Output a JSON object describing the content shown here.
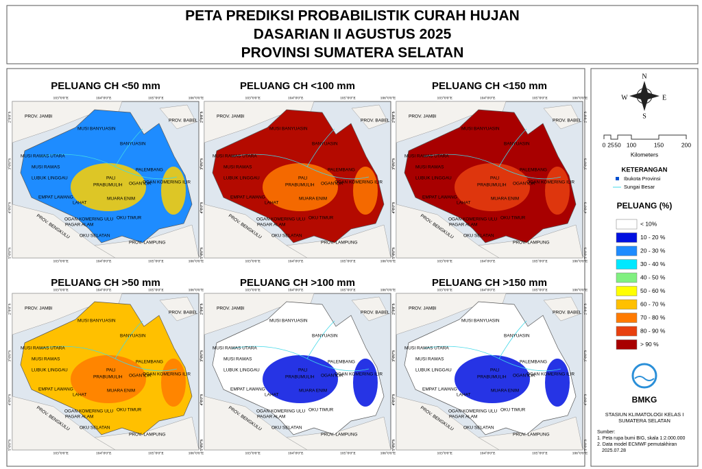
{
  "header": {
    "title_lines": [
      "PETA PREDIKSI PROBABILISTIK CURAH HUJAN",
      "DASARIAN II AGUSTUS 2025",
      "PROVINSI SUMATERA SELATAN"
    ]
  },
  "grid_labels": {
    "lon": [
      "103°0'0\"E",
      "104°0'0\"E",
      "105°0'0\"E",
      "106°0'0\"E"
    ],
    "lat": [
      "2°0'0\"S",
      "3°0'0\"S",
      "4°0'0\"S",
      "5°0'0\"S"
    ]
  },
  "map_labels": [
    "PROV. JAMBI",
    "PROV. BABEL",
    "MUSI BANYUASIN",
    "BANYUASIN",
    "MUSI RAWAS UTARA",
    "MUSI RAWAS",
    "LUBUK LINGGAU",
    "PALEMBANG",
    "PALI",
    "PRABUMULIH",
    "MUARA ENIM",
    "OGAN ILIR",
    "OGAN KOMERING ILIR",
    "EMPAT LAWANG",
    "LAHAT",
    "PAGAR ALAM",
    "OGAN KOMERING ULU",
    "OKU TIMUR",
    "OKU SELATAN",
    "PROV. BENGKULU",
    "PROV. LAMPUNG"
  ],
  "maps": [
    {
      "title": "PELUANG CH <50 mm",
      "base_color": "#1e8cff",
      "blob_color": "#ffd000"
    },
    {
      "title": "PELUANG CH <100 mm",
      "base_color": "#b40a00",
      "blob_color": "#ff7a00"
    },
    {
      "title": "PELUANG CH <150 mm",
      "base_color": "#a80000",
      "blob_color": "#e8400f"
    },
    {
      "title": "PELUANG CH >50 mm",
      "base_color": "#ffc000",
      "blob_color": "#ff7a00"
    },
    {
      "title": "PELUANG CH >100 mm",
      "base_color": "#ffffff",
      "blob_color": "#0010e0"
    },
    {
      "title": "PELUANG CH >150 mm",
      "base_color": "#ffffff",
      "blob_color": "#0010e0"
    }
  ],
  "legend": {
    "compass": {
      "n": "N",
      "s": "S",
      "e": "E",
      "w": "W"
    },
    "scale": {
      "ticks": [
        "0",
        "25",
        "50",
        "100",
        "150",
        "200"
      ],
      "unit": "Kilometers"
    },
    "keterangan": "KETERANGAN",
    "capital": "Ibukota Provinsi",
    "river": "Sungai Besar",
    "class_title": "PELUANG (%)",
    "classes": [
      {
        "label": "< 10%",
        "color": "#ffffff"
      },
      {
        "label": "10 - 20 %",
        "color": "#0010e0"
      },
      {
        "label": "20 - 30 %",
        "color": "#1e8cff"
      },
      {
        "label": "30 - 40 %",
        "color": "#00e8ff"
      },
      {
        "label": "40 - 50 %",
        "color": "#80f080"
      },
      {
        "label": "50 - 60 %",
        "color": "#ffff00"
      },
      {
        "label": "60 - 70 %",
        "color": "#ffc000"
      },
      {
        "label": "70 - 80 %",
        "color": "#ff7a00"
      },
      {
        "label": "80 - 90 %",
        "color": "#e8400f"
      },
      {
        "label": "> 90 %",
        "color": "#a80000"
      }
    ],
    "logo": "BMKG",
    "station_lines": [
      "STASIUN KLIMATOLOGI KELAS I",
      "SUMATERA SELATAN"
    ],
    "source_title": "Sumber:",
    "sources": [
      "1. Peta rupa bumi BIG, skala 1:2.000.000",
      "2. Data model ECMWF pemutakhiran",
      "2025.07.28"
    ]
  }
}
